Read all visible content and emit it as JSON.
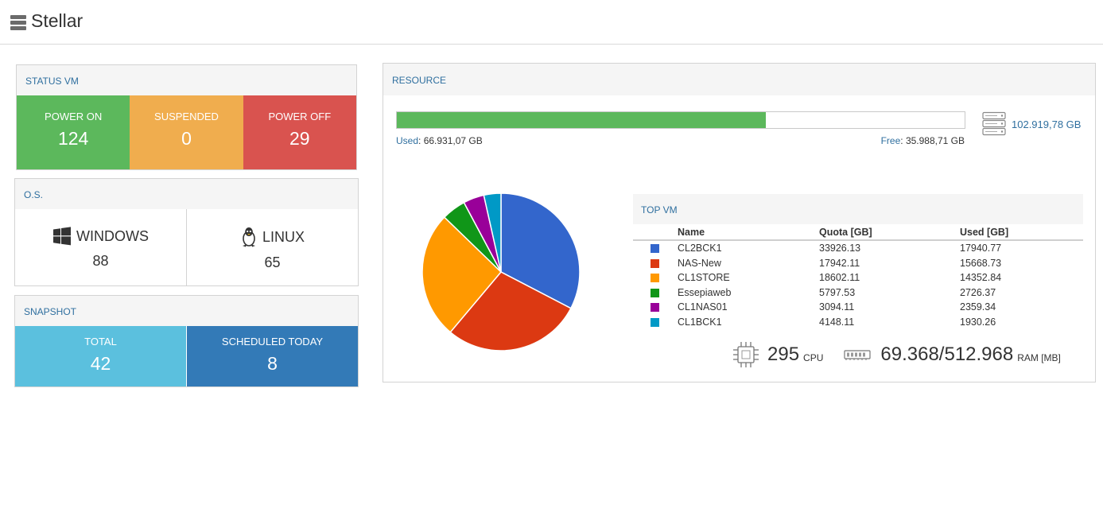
{
  "app": {
    "title": "Stellar",
    "menu_icon": "server-stack-icon"
  },
  "status_vm": {
    "title": "STATUS VM",
    "tiles": [
      {
        "label": "POWER ON",
        "value": "124",
        "color": "#5cb85c"
      },
      {
        "label": "SUSPENDED",
        "value": "0",
        "color": "#f0ad4e"
      },
      {
        "label": "POWER OFF",
        "value": "29",
        "color": "#d9534f"
      }
    ]
  },
  "os": {
    "title": "O.S.",
    "items": [
      {
        "label": "WINDOWS",
        "value": "88",
        "icon": "windows-icon"
      },
      {
        "label": "LINUX",
        "value": "65",
        "icon": "linux-penguin-icon"
      }
    ]
  },
  "snapshot": {
    "title": "SNAPSHOT",
    "tiles": [
      {
        "label": "TOTAL",
        "value": "42",
        "color": "#5bc0de"
      },
      {
        "label": "SCHEDULED TODAY",
        "value": "8",
        "color": "#337ab7"
      }
    ]
  },
  "resource": {
    "title": "RESOURCE",
    "storage": {
      "used_key": "Used",
      "used_value": "66.931,07 GB",
      "free_key": "Free",
      "free_value": "35.988,71 GB",
      "total": "102.919,78 GB",
      "used_fraction": 0.6503,
      "bar_color": "#5cb85c"
    },
    "top_vm": {
      "title": "TOP VM",
      "columns": [
        "Name",
        "Quota [GB]",
        "Used [GB]"
      ],
      "rows": [
        {
          "color": "#3366cc",
          "name": "CL2BCK1",
          "quota": "33926.13",
          "used": "17940.77"
        },
        {
          "color": "#dc3912",
          "name": "NAS-New",
          "quota": "17942.11",
          "used": "15668.73"
        },
        {
          "color": "#ff9900",
          "name": "CL1STORE",
          "quota": "18602.11",
          "used": "14352.84"
        },
        {
          "color": "#109618",
          "name": "Essepiaweb",
          "quota": "5797.53",
          "used": "2726.37"
        },
        {
          "color": "#990099",
          "name": "CL1NAS01",
          "quota": "3094.11",
          "used": "2359.34"
        },
        {
          "color": "#0099c6",
          "name": "CL1BCK1",
          "quota": "4148.11",
          "used": "1930.26"
        }
      ]
    },
    "cpu": {
      "value": "295",
      "unit": "CPU",
      "icon": "cpu-chip-icon"
    },
    "ram": {
      "value": "69.368/512.968",
      "unit": "RAM [MB]",
      "icon": "ram-module-icon"
    }
  },
  "chart_data": {
    "type": "pie",
    "labels": [
      "CL2BCK1",
      "NAS-New",
      "CL1STORE",
      "Essepiaweb",
      "CL1NAS01",
      "CL1BCK1"
    ],
    "values": [
      17940.77,
      15668.73,
      14352.84,
      2726.37,
      2359.34,
      1930.26
    ],
    "colors": [
      "#3366cc",
      "#dc3912",
      "#ff9900",
      "#109618",
      "#990099",
      "#0099c6"
    ]
  }
}
